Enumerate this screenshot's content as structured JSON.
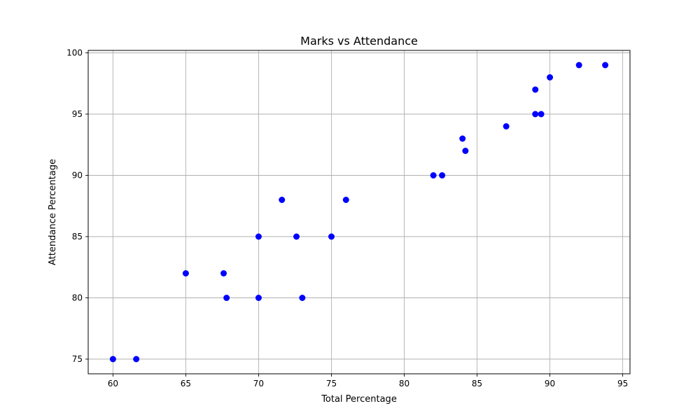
{
  "chart_data": {
    "type": "scatter",
    "title": "Marks vs Attendance",
    "xlabel": "Total Percentage",
    "ylabel": "Attendance Percentage",
    "xlim": [
      58.3,
      95.5
    ],
    "ylim": [
      73.8,
      100.2
    ],
    "x_ticks": [
      60,
      65,
      70,
      75,
      80,
      85,
      90,
      95
    ],
    "y_ticks": [
      75,
      80,
      85,
      90,
      95,
      100
    ],
    "grid": true,
    "marker_color": "#0000ff",
    "points": [
      {
        "x": 60.0,
        "y": 75
      },
      {
        "x": 61.6,
        "y": 75
      },
      {
        "x": 65.0,
        "y": 82
      },
      {
        "x": 67.6,
        "y": 82
      },
      {
        "x": 67.8,
        "y": 80
      },
      {
        "x": 70.0,
        "y": 85
      },
      {
        "x": 70.0,
        "y": 80
      },
      {
        "x": 71.6,
        "y": 88
      },
      {
        "x": 72.6,
        "y": 85
      },
      {
        "x": 73.0,
        "y": 80
      },
      {
        "x": 75.0,
        "y": 85
      },
      {
        "x": 76.0,
        "y": 88
      },
      {
        "x": 82.0,
        "y": 90
      },
      {
        "x": 82.6,
        "y": 90
      },
      {
        "x": 84.0,
        "y": 93
      },
      {
        "x": 84.2,
        "y": 92
      },
      {
        "x": 87.0,
        "y": 94
      },
      {
        "x": 89.0,
        "y": 97
      },
      {
        "x": 89.0,
        "y": 95
      },
      {
        "x": 89.4,
        "y": 95
      },
      {
        "x": 90.0,
        "y": 98
      },
      {
        "x": 92.0,
        "y": 99
      },
      {
        "x": 93.8,
        "y": 99
      }
    ]
  }
}
